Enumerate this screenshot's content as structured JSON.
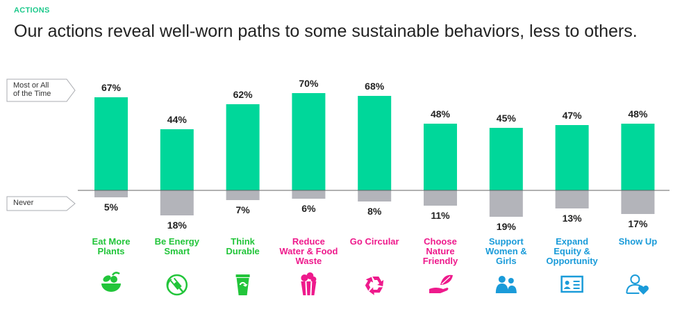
{
  "header": {
    "kicker": "ACTIONS",
    "title": "Our actions reveal well-worn paths to some sustainable behaviors, less to others."
  },
  "colors": {
    "positive_bar": "#00d79a",
    "negative_bar": "#b3b4ba",
    "green": "#22c53a",
    "magenta": "#ee1a8c",
    "blue": "#1a9bd9"
  },
  "chart_data": {
    "type": "bar",
    "title": "Our actions reveal well-worn paths to some sustainable behaviors, less to others.",
    "series": [
      {
        "name": "Most or All of the Time",
        "values": [
          67,
          44,
          62,
          70,
          68,
          48,
          45,
          47,
          48
        ]
      },
      {
        "name": "Never",
        "values": [
          5,
          18,
          7,
          6,
          8,
          11,
          19,
          13,
          17
        ]
      }
    ],
    "axis_labels": {
      "top": [
        "Most or All",
        "of the Time"
      ],
      "bottom": [
        "Never"
      ]
    },
    "categories": [
      {
        "lines": [
          "Eat More",
          "Plants"
        ],
        "color": "#22c53a",
        "icon": "plant-bowl-icon"
      },
      {
        "lines": [
          "Be Energy",
          "Smart"
        ],
        "color": "#22c53a",
        "icon": "energy-plug-icon"
      },
      {
        "lines": [
          "Think",
          "Durable"
        ],
        "color": "#22c53a",
        "icon": "reusable-cup-icon"
      },
      {
        "lines": [
          "Reduce",
          "Water & Food",
          "Waste"
        ],
        "color": "#ee1a8c",
        "icon": "popcorn-bucket-icon"
      },
      {
        "lines": [
          "Go Circular"
        ],
        "color": "#ee1a8c",
        "icon": "recycle-icon"
      },
      {
        "lines": [
          "Choose",
          "Nature",
          "Friendly"
        ],
        "color": "#ee1a8c",
        "icon": "hand-leaf-icon"
      },
      {
        "lines": [
          "Support",
          "Women &",
          "Girls"
        ],
        "color": "#1a9bd9",
        "icon": "people-group-icon"
      },
      {
        "lines": [
          "Expand",
          "Equity &",
          "Opportunity"
        ],
        "color": "#1a9bd9",
        "icon": "id-card-icon"
      },
      {
        "lines": [
          "Show Up"
        ],
        "color": "#1a9bd9",
        "icon": "person-heart-icon"
      }
    ]
  }
}
